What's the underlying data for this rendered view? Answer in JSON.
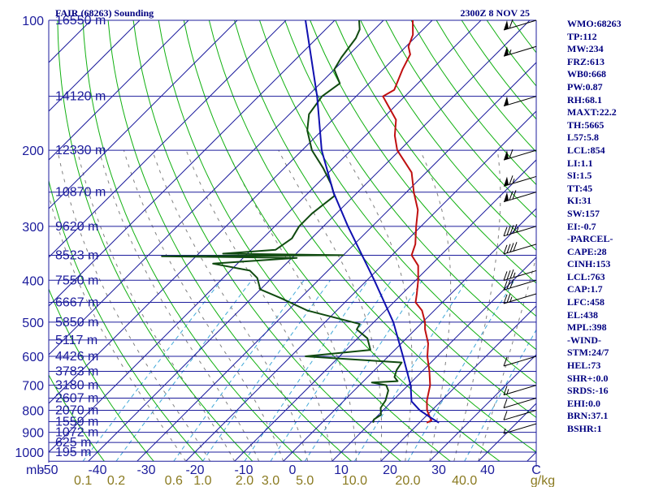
{
  "header": {
    "station": "FAIR (68263) Sounding",
    "time": "2300Z  8 NOV 25"
  },
  "colors": {
    "grid": "#1c1c9c",
    "isotherm": "#1c1c9c",
    "dry_adiabat": "#10b010",
    "moist_adiabat": "#808080",
    "mixing_ratio": "#40a8d8",
    "temperature": "#c01010",
    "dewpoint": "#104a10",
    "parcel": "#1010b0",
    "text": "#000080",
    "mix_label": "#8a7a20"
  },
  "chart_data": {
    "type": "line",
    "title": "FAIR (68263) Sounding",
    "diagram": "skew-T log-P",
    "pressure_axis": {
      "unit": "mb",
      "ticks": [
        "100",
        "200",
        "300",
        "400",
        "500",
        "600",
        "700",
        "800",
        "900",
        "1000"
      ],
      "tick_values": [
        100,
        200,
        300,
        400,
        500,
        600,
        700,
        800,
        900,
        1000
      ],
      "range": [
        100,
        1050
      ]
    },
    "temperature_axis": {
      "unit": "C",
      "ticks": [
        "-50",
        "-40",
        "-30",
        "-20",
        "-10",
        "0",
        "10",
        "20",
        "30",
        "40",
        "C"
      ],
      "tick_values": [
        -50,
        -40,
        -30,
        -20,
        -10,
        0,
        10,
        20,
        30,
        40
      ],
      "range_at_bottom": [
        -50,
        50
      ]
    },
    "mixing_ratio_axis": {
      "unit": "g/kg",
      "ticks": [
        "0.1",
        "0.2",
        "0.6",
        "1.0",
        "2.0",
        "3.0",
        "5.0",
        "10.0",
        "20.0",
        "40.0",
        "g/kg"
      ],
      "values": [
        0.1,
        0.2,
        0.6,
        1.0,
        2.0,
        3.0,
        5.0,
        10.0,
        20.0,
        40.0
      ]
    },
    "height_labels": [
      {
        "p": 100,
        "text": "16550 m"
      },
      {
        "p": 150,
        "text": "14120 m"
      },
      {
        "p": 200,
        "text": "12330 m"
      },
      {
        "p": 250,
        "text": "10870 m"
      },
      {
        "p": 300,
        "text": "9620 m"
      },
      {
        "p": 350,
        "text": "8523 m"
      },
      {
        "p": 400,
        "text": "7550 m"
      },
      {
        "p": 450,
        "text": "6667 m"
      },
      {
        "p": 500,
        "text": "5850 m"
      },
      {
        "p": 550,
        "text": "5117 m"
      },
      {
        "p": 600,
        "text": "4426 m"
      },
      {
        "p": 650,
        "text": "3783 m"
      },
      {
        "p": 700,
        "text": "3180 m"
      },
      {
        "p": 750,
        "text": "2607 m"
      },
      {
        "p": 800,
        "text": "2070 m"
      },
      {
        "p": 850,
        "text": "1559 m"
      },
      {
        "p": 900,
        "text": "1072 m"
      },
      {
        "p": 950,
        "text": "625 m"
      },
      {
        "p": 1000,
        "text": "195 m"
      }
    ],
    "series": [
      {
        "name": "Temperature",
        "unit": "C",
        "points": [
          [
            855,
            21.5
          ],
          [
            845,
            22.0
          ],
          [
            830,
            21.0
          ],
          [
            800,
            19.0
          ],
          [
            760,
            17.0
          ],
          [
            700,
            14.5
          ],
          [
            650,
            11.5
          ],
          [
            600,
            8.0
          ],
          [
            560,
            5.5
          ],
          [
            520,
            2.0
          ],
          [
            500,
            0.5
          ],
          [
            470,
            -2.5
          ],
          [
            450,
            -5.5
          ],
          [
            430,
            -7.0
          ],
          [
            400,
            -9.5
          ],
          [
            370,
            -12.5
          ],
          [
            350,
            -16.0
          ],
          [
            330,
            -17.5
          ],
          [
            300,
            -21.0
          ],
          [
            275,
            -24.0
          ],
          [
            250,
            -28.5
          ],
          [
            225,
            -33.0
          ],
          [
            200,
            -40.5
          ],
          [
            185,
            -44.0
          ],
          [
            170,
            -47.0
          ],
          [
            150,
            -54.5
          ],
          [
            145,
            -53.5
          ],
          [
            130,
            -56.0
          ],
          [
            120,
            -57.5
          ],
          [
            115,
            -59.5
          ],
          [
            108,
            -61.0
          ],
          [
            100,
            -64.0
          ]
        ]
      },
      {
        "name": "Dewpoint",
        "unit": "C",
        "points": [
          [
            855,
            10.5
          ],
          [
            840,
            10.0
          ],
          [
            820,
            10.5
          ],
          [
            790,
            9.0
          ],
          [
            760,
            8.5
          ],
          [
            720,
            7.0
          ],
          [
            700,
            5.5
          ],
          [
            690,
            2.0
          ],
          [
            685,
            7.0
          ],
          [
            670,
            5.5
          ],
          [
            645,
            4.5
          ],
          [
            620,
            4.0
          ],
          [
            605,
            -12.0
          ],
          [
            600,
            -17.0
          ],
          [
            580,
            -5.0
          ],
          [
            545,
            -8.0
          ],
          [
            520,
            -12.0
          ],
          [
            505,
            -12.5
          ],
          [
            470,
            -26.0
          ],
          [
            440,
            -34.0
          ],
          [
            420,
            -40.0
          ],
          [
            395,
            -43.0
          ],
          [
            380,
            -46.0
          ],
          [
            366,
            -55.0
          ],
          [
            355,
            -39.0
          ],
          [
            352,
            -67.0
          ],
          [
            350,
            -30.0
          ],
          [
            347,
            -55.0
          ],
          [
            340,
            -45.0
          ],
          [
            320,
            -44.0
          ],
          [
            300,
            -45.0
          ],
          [
            280,
            -45.0
          ],
          [
            255,
            -44.0
          ],
          [
            240,
            -47.0
          ],
          [
            220,
            -52.0
          ],
          [
            200,
            -58.0
          ],
          [
            180,
            -63.0
          ],
          [
            165,
            -66.0
          ],
          [
            150,
            -67.0
          ],
          [
            140,
            -66.0
          ],
          [
            130,
            -70.0
          ],
          [
            122,
            -71.0
          ],
          [
            110,
            -72.0
          ],
          [
            105,
            -73.0
          ],
          [
            100,
            -75.0
          ]
        ]
      },
      {
        "name": "Parcel",
        "unit": "C",
        "points": [
          [
            855,
            24.0
          ],
          [
            830,
            21.0
          ],
          [
            800,
            17.5
          ],
          [
            763,
            14.0
          ],
          [
            700,
            10.5
          ],
          [
            600,
            3.0
          ],
          [
            500,
            -6.0
          ],
          [
            400,
            -18.5
          ],
          [
            300,
            -35.0
          ],
          [
            250,
            -45.0
          ],
          [
            200,
            -56.0
          ],
          [
            150,
            -68.0
          ],
          [
            100,
            -86.0
          ]
        ]
      }
    ],
    "wind_barbs": [
      {
        "p": 100,
        "speed_kt": 60
      },
      {
        "p": 115,
        "speed_kt": 55
      },
      {
        "p": 150,
        "speed_kt": 50
      },
      {
        "p": 200,
        "speed_kt": 60
      },
      {
        "p": 230,
        "speed_kt": 65
      },
      {
        "p": 250,
        "speed_kt": 70
      },
      {
        "p": 300,
        "speed_kt": 45
      },
      {
        "p": 330,
        "speed_kt": 40
      },
      {
        "p": 380,
        "speed_kt": 35
      },
      {
        "p": 400,
        "speed_kt": 30
      },
      {
        "p": 430,
        "speed_kt": 25
      },
      {
        "p": 600,
        "speed_kt": 10
      },
      {
        "p": 700,
        "speed_kt": 15
      },
      {
        "p": 750,
        "speed_kt": 12
      },
      {
        "p": 800,
        "speed_kt": 10
      },
      {
        "p": 860,
        "speed_kt": 5
      }
    ]
  },
  "stats": [
    "WMO:68263",
    "TP:112",
    "MW:234",
    "FRZ:613",
    "WB0:668",
    "PW:0.87",
    "RH:68.1",
    "MAXT:22.2",
    "TH:5665",
    "L57:5.8",
    "LCL:854",
    "LI:1.1",
    "SI:1.5",
    "TT:45",
    "KI:31",
    "SW:157",
    "EI:-0.7",
    "-PARCEL-",
    "CAPE:28",
    "CINH:153",
    "LCL:763",
    "CAP:1.7",
    "LFC:458",
    "EL:438",
    "MPL:398",
    "-WIND-",
    "STM:24/7",
    "HEL:73",
    "SHR+:0.0",
    "SRDS:-16",
    "EHI:0.0",
    "BRN:37.1",
    "BSHR:1"
  ]
}
